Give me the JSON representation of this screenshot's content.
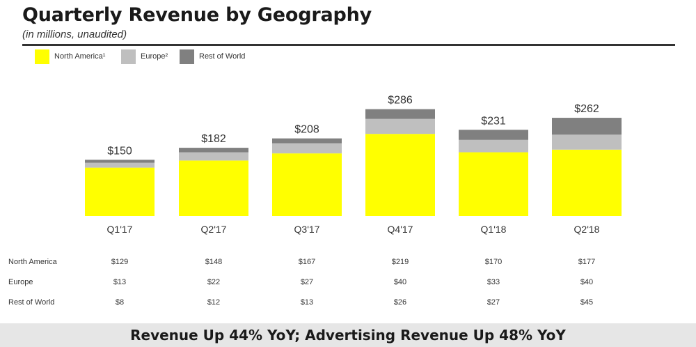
{
  "header": {
    "title": "Quarterly Revenue by Geography",
    "subtitle": "(in millions, unaudited)"
  },
  "legend": [
    {
      "label": "North America¹",
      "color": "#ffff00"
    },
    {
      "label": "Europe²",
      "color": "#bfbfbf"
    },
    {
      "label": "Rest of World",
      "color": "#808080"
    }
  ],
  "chart_data": {
    "type": "bar",
    "stacked": true,
    "title": "Quarterly Revenue by Geography",
    "subtitle": "(in millions, unaudited)",
    "categories": [
      "Q1'17",
      "Q2'17",
      "Q3'17",
      "Q4'17",
      "Q1'18",
      "Q2'18"
    ],
    "series": [
      {
        "name": "North America¹",
        "color": "#ffff00",
        "values": [
          129,
          148,
          167,
          219,
          170,
          177
        ]
      },
      {
        "name": "Europe²",
        "color": "#bfbfbf",
        "values": [
          13,
          22,
          27,
          40,
          33,
          40
        ]
      },
      {
        "name": "Rest of World",
        "color": "#808080",
        "values": [
          8,
          12,
          13,
          26,
          27,
          45
        ]
      }
    ],
    "totals": [
      150,
      182,
      208,
      286,
      231,
      262
    ],
    "total_labels": [
      "$150",
      "$182",
      "$208",
      "$286",
      "$231",
      "$262"
    ],
    "ylim": [
      0,
      286
    ],
    "grid": false,
    "legend_position": "top-left"
  },
  "table": {
    "rows": [
      {
        "label": "North America",
        "values": [
          "$129",
          "$148",
          "$167",
          "$219",
          "$170",
          "$177"
        ]
      },
      {
        "label": "Europe",
        "values": [
          "$13",
          "$22",
          "$27",
          "$40",
          "$33",
          "$40"
        ]
      },
      {
        "label": "Rest of World",
        "values": [
          "$8",
          "$12",
          "$13",
          "$26",
          "$27",
          "$45"
        ]
      }
    ]
  },
  "footer": {
    "text": "Revenue Up 44% YoY; Advertising Revenue Up 48% YoY"
  }
}
